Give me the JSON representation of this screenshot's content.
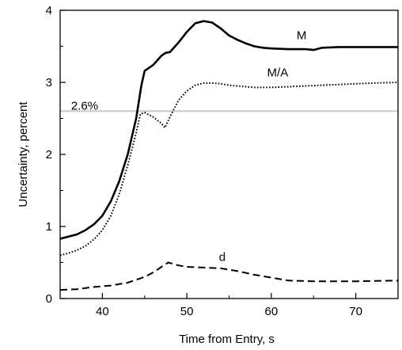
{
  "chart_data": {
    "type": "line",
    "title": "",
    "xlabel": "Time from Entry, s",
    "ylabel": "Uncertainty, percent",
    "xlim": [
      35,
      75
    ],
    "ylim": [
      0,
      4
    ],
    "xticks": [
      40,
      50,
      60,
      70
    ],
    "yticks": [
      0,
      1,
      2,
      3,
      4
    ],
    "grid": false,
    "reference_line": {
      "y": 2.6,
      "label": "2.6%",
      "color": "#c8c8c8"
    },
    "series": [
      {
        "name": "M",
        "style": "solid",
        "points": [
          [
            35,
            0.83
          ],
          [
            36,
            0.86
          ],
          [
            37,
            0.89
          ],
          [
            38,
            0.95
          ],
          [
            39,
            1.03
          ],
          [
            40,
            1.15
          ],
          [
            41,
            1.35
          ],
          [
            42,
            1.63
          ],
          [
            43,
            2.0
          ],
          [
            44,
            2.5
          ],
          [
            44.6,
            2.95
          ],
          [
            45,
            3.16
          ],
          [
            46,
            3.24
          ],
          [
            47,
            3.37
          ],
          [
            47.5,
            3.41
          ],
          [
            48,
            3.42
          ],
          [
            49,
            3.55
          ],
          [
            50,
            3.7
          ],
          [
            51,
            3.82
          ],
          [
            52,
            3.85
          ],
          [
            53,
            3.83
          ],
          [
            54,
            3.75
          ],
          [
            55,
            3.65
          ],
          [
            56,
            3.59
          ],
          [
            57,
            3.54
          ],
          [
            58,
            3.5
          ],
          [
            59,
            3.48
          ],
          [
            60,
            3.47
          ],
          [
            62,
            3.46
          ],
          [
            64,
            3.46
          ],
          [
            65,
            3.45
          ],
          [
            66,
            3.48
          ],
          [
            68,
            3.49
          ],
          [
            70,
            3.49
          ],
          [
            72,
            3.49
          ],
          [
            75,
            3.49
          ]
        ]
      },
      {
        "name": "M/A",
        "style": "dotted",
        "points": [
          [
            35,
            0.6
          ],
          [
            36,
            0.63
          ],
          [
            37,
            0.67
          ],
          [
            38,
            0.73
          ],
          [
            39,
            0.82
          ],
          [
            40,
            0.95
          ],
          [
            41,
            1.15
          ],
          [
            42,
            1.45
          ],
          [
            43,
            1.85
          ],
          [
            44,
            2.3
          ],
          [
            44.5,
            2.56
          ],
          [
            45,
            2.58
          ],
          [
            46,
            2.52
          ],
          [
            47,
            2.43
          ],
          [
            47.4,
            2.37
          ],
          [
            48,
            2.52
          ],
          [
            49,
            2.75
          ],
          [
            50,
            2.88
          ],
          [
            51,
            2.96
          ],
          [
            52,
            2.99
          ],
          [
            53,
            2.99
          ],
          [
            54,
            2.98
          ],
          [
            55,
            2.96
          ],
          [
            56,
            2.95
          ],
          [
            58,
            2.93
          ],
          [
            60,
            2.93
          ],
          [
            62,
            2.94
          ],
          [
            64,
            2.95
          ],
          [
            66,
            2.96
          ],
          [
            68,
            2.97
          ],
          [
            70,
            2.98
          ],
          [
            72,
            2.99
          ],
          [
            75,
            3.0
          ]
        ]
      },
      {
        "name": "d",
        "style": "dashed",
        "points": [
          [
            35,
            0.12
          ],
          [
            37,
            0.13
          ],
          [
            39,
            0.16
          ],
          [
            41,
            0.18
          ],
          [
            43,
            0.22
          ],
          [
            45,
            0.3
          ],
          [
            46,
            0.36
          ],
          [
            47,
            0.44
          ],
          [
            47.8,
            0.5
          ],
          [
            49,
            0.46
          ],
          [
            50,
            0.44
          ],
          [
            52,
            0.43
          ],
          [
            54,
            0.42
          ],
          [
            56,
            0.38
          ],
          [
            58,
            0.33
          ],
          [
            60,
            0.29
          ],
          [
            62,
            0.25
          ],
          [
            65,
            0.24
          ],
          [
            70,
            0.24
          ],
          [
            75,
            0.25
          ]
        ]
      }
    ],
    "annotations": [
      {
        "text": "M",
        "x": 63,
        "y": 3.6
      },
      {
        "text": "M/A",
        "x": 59.5,
        "y": 3.08
      },
      {
        "text": "2.6%",
        "x": 36.3,
        "y": 2.62
      },
      {
        "text": "d",
        "x": 53.8,
        "y": 0.52
      }
    ]
  }
}
